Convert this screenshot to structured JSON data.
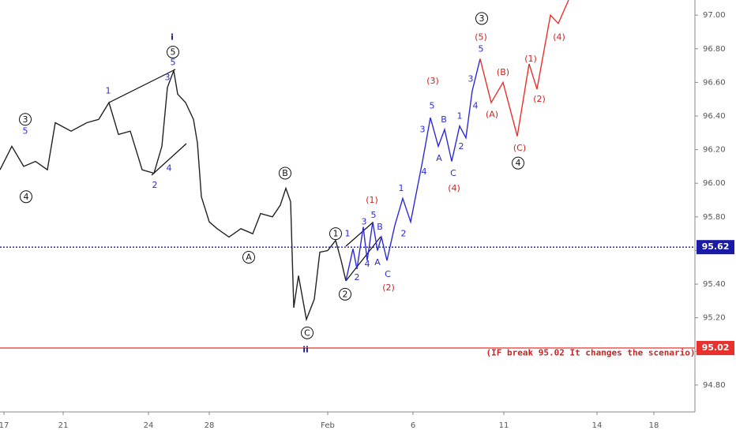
{
  "chart_data": {
    "type": "line",
    "xlim": [
      0,
      88
    ],
    "ylim": [
      94.64,
      97.09
    ],
    "xticks": [
      {
        "value": 0.5,
        "label": "17"
      },
      {
        "value": 8,
        "label": "21"
      },
      {
        "value": 18.8,
        "label": "24"
      },
      {
        "value": 26.5,
        "label": "28"
      },
      {
        "value": 41.5,
        "label": "Feb"
      },
      {
        "value": 52.3,
        "label": "6"
      },
      {
        "value": 63.8,
        "label": "11"
      },
      {
        "value": 75.6,
        "label": "14"
      },
      {
        "value": 82.8,
        "label": "18"
      }
    ],
    "yticks": [
      {
        "value": 94.8,
        "label": "94.80"
      },
      {
        "value": 95.0,
        "label": "95.00"
      },
      {
        "value": 95.2,
        "label": "95.20"
      },
      {
        "value": 95.4,
        "label": "95.40"
      },
      {
        "value": 95.6,
        "label": "95.60"
      },
      {
        "value": 95.8,
        "label": "95.80"
      },
      {
        "value": 96.0,
        "label": "96.00"
      },
      {
        "value": 96.2,
        "label": "96.20"
      },
      {
        "value": 96.4,
        "label": "96.40"
      },
      {
        "value": 96.6,
        "label": "96.60"
      },
      {
        "value": 96.8,
        "label": "96.80"
      },
      {
        "value": 97.0,
        "label": "97.00"
      }
    ],
    "series": [
      {
        "color": "#222222",
        "x": [
          0,
          1.5,
          3,
          4.5,
          6,
          7,
          9,
          11,
          12.5,
          13.8,
          15,
          16.5,
          18,
          19.5,
          20.5,
          21.2,
          22,
          22.5,
          23.5,
          24.5,
          25,
          25.5,
          26.5,
          27.5,
          29,
          30.5,
          32,
          33,
          34.5,
          35.5,
          36.2,
          36.8,
          37.2,
          37.8,
          38.8,
          39.8,
          40.5,
          41.5,
          42.5,
          43.2,
          43.8
        ],
        "values": [
          96.08,
          96.22,
          96.1,
          96.13,
          96.08,
          96.36,
          96.31,
          96.36,
          96.38,
          96.48,
          96.29,
          96.31,
          96.08,
          96.06,
          96.22,
          96.57,
          96.67,
          96.53,
          96.48,
          96.38,
          96.24,
          95.92,
          95.77,
          95.73,
          95.68,
          95.73,
          95.7,
          95.82,
          95.8,
          95.87,
          95.97,
          95.89,
          95.26,
          95.45,
          95.19,
          95.31,
          95.59,
          95.6,
          95.66,
          95.54,
          95.42
        ]
      },
      {
        "color": "#2b2bd6",
        "x": [
          43.8,
          44.7,
          45.2,
          46,
          46.5,
          47.2,
          47.8,
          48.3,
          49,
          50,
          51,
          52,
          53.5,
          54.5,
          55.5,
          56.3,
          57.2,
          58.2,
          59,
          59.8,
          60.8
        ],
        "values": [
          95.42,
          95.61,
          95.49,
          95.74,
          95.54,
          95.77,
          95.6,
          95.68,
          95.54,
          95.75,
          95.91,
          95.77,
          96.13,
          96.39,
          96.22,
          96.32,
          96.13,
          96.34,
          96.27,
          96.55,
          96.74
        ]
      },
      {
        "color": "#e8302c",
        "x": [
          60.8,
          62.2,
          63.7,
          65.5,
          67,
          68,
          69.7,
          70.7,
          72
        ],
        "values": [
          96.74,
          96.48,
          96.6,
          96.28,
          96.71,
          96.56,
          97.0,
          96.95,
          97.09
        ]
      }
    ],
    "hlines": [
      {
        "value": 95.62,
        "label": "95.62",
        "color": "#1a1aa8",
        "dotted": true
      },
      {
        "value": 95.02,
        "label": "95.02",
        "color": "#e8302c",
        "dotted": false
      }
    ],
    "note": {
      "text": "(IF break 95.02 It changes the scenario)",
      "x": 74.8,
      "y": 94.99,
      "color": "#d01f1f"
    },
    "wave_labels": [
      {
        "color": "#111111",
        "circled": true,
        "items": [
          {
            "text": "3",
            "x": 3.2,
            "y": 96.38
          },
          {
            "text": "4",
            "x": 3.3,
            "y": 95.92
          },
          {
            "text": "5",
            "x": 21.9,
            "y": 96.78
          },
          {
            "text": "B",
            "x": 36.1,
            "y": 96.06
          },
          {
            "text": "A",
            "x": 31.5,
            "y": 95.56
          },
          {
            "text": "C",
            "x": 38.9,
            "y": 95.11
          },
          {
            "text": "1",
            "x": 42.5,
            "y": 95.7
          },
          {
            "text": "2",
            "x": 43.7,
            "y": 95.34
          },
          {
            "text": "3",
            "x": 61,
            "y": 96.98
          },
          {
            "text": "4",
            "x": 65.6,
            "y": 96.12
          }
        ]
      },
      {
        "color": "#1a1a8c",
        "circled": false,
        "bold": true,
        "items": [
          {
            "text": "i",
            "x": 21.8,
            "y": 96.87
          },
          {
            "text": "ii",
            "x": 38.7,
            "y": 95.01
          }
        ]
      },
      {
        "color": "#2b2bd6",
        "circled": false,
        "items": [
          {
            "text": "5",
            "x": 3.2,
            "y": 96.31
          },
          {
            "text": "1",
            "x": 13.7,
            "y": 96.55
          },
          {
            "text": "5",
            "x": 21.9,
            "y": 96.72
          },
          {
            "text": "3",
            "x": 21.2,
            "y": 96.63
          },
          {
            "text": "4",
            "x": 21.4,
            "y": 96.09
          },
          {
            "text": "2",
            "x": 19.6,
            "y": 95.99
          },
          {
            "text": "1",
            "x": 44,
            "y": 95.7
          },
          {
            "text": "2",
            "x": 45.2,
            "y": 95.44
          },
          {
            "text": "3",
            "x": 46.1,
            "y": 95.77
          },
          {
            "text": "4",
            "x": 46.5,
            "y": 95.52
          },
          {
            "text": "5",
            "x": 47.3,
            "y": 95.81
          },
          {
            "text": "B",
            "x": 48.1,
            "y": 95.74
          },
          {
            "text": "A",
            "x": 47.8,
            "y": 95.53
          },
          {
            "text": "C",
            "x": 49.1,
            "y": 95.46
          },
          {
            "text": "1",
            "x": 50.8,
            "y": 95.97
          },
          {
            "text": "2",
            "x": 51.1,
            "y": 95.7
          },
          {
            "text": "3",
            "x": 53.5,
            "y": 96.32
          },
          {
            "text": "4",
            "x": 53.7,
            "y": 96.07
          },
          {
            "text": "5",
            "x": 54.7,
            "y": 96.46
          },
          {
            "text": "B",
            "x": 56.2,
            "y": 96.38
          },
          {
            "text": "A",
            "x": 55.6,
            "y": 96.15
          },
          {
            "text": "C",
            "x": 57.4,
            "y": 96.06
          },
          {
            "text": "1",
            "x": 58.2,
            "y": 96.4
          },
          {
            "text": "2",
            "x": 58.4,
            "y": 96.22
          },
          {
            "text": "3",
            "x": 59.6,
            "y": 96.62
          },
          {
            "text": "4",
            "x": 60.2,
            "y": 96.46
          },
          {
            "text": "5",
            "x": 60.9,
            "y": 96.8
          }
        ]
      },
      {
        "color": "#d01f1f",
        "circled": false,
        "items": [
          {
            "text": "(1)",
            "x": 47.1,
            "y": 95.9
          },
          {
            "text": "(2)",
            "x": 49.2,
            "y": 95.38
          },
          {
            "text": "(3)",
            "x": 54.8,
            "y": 96.61
          },
          {
            "text": "(4)",
            "x": 57.5,
            "y": 95.97
          },
          {
            "text": "(5)",
            "x": 60.9,
            "y": 96.87
          },
          {
            "text": "(A)",
            "x": 62.3,
            "y": 96.41
          },
          {
            "text": "(B)",
            "x": 63.7,
            "y": 96.66
          },
          {
            "text": "(C)",
            "x": 65.8,
            "y": 96.21
          },
          {
            "text": "(1)",
            "x": 67.2,
            "y": 96.74
          },
          {
            "text": "(2)",
            "x": 68.3,
            "y": 96.5
          },
          {
            "text": "(4)",
            "x": 70.8,
            "y": 96.87
          }
        ]
      }
    ]
  }
}
